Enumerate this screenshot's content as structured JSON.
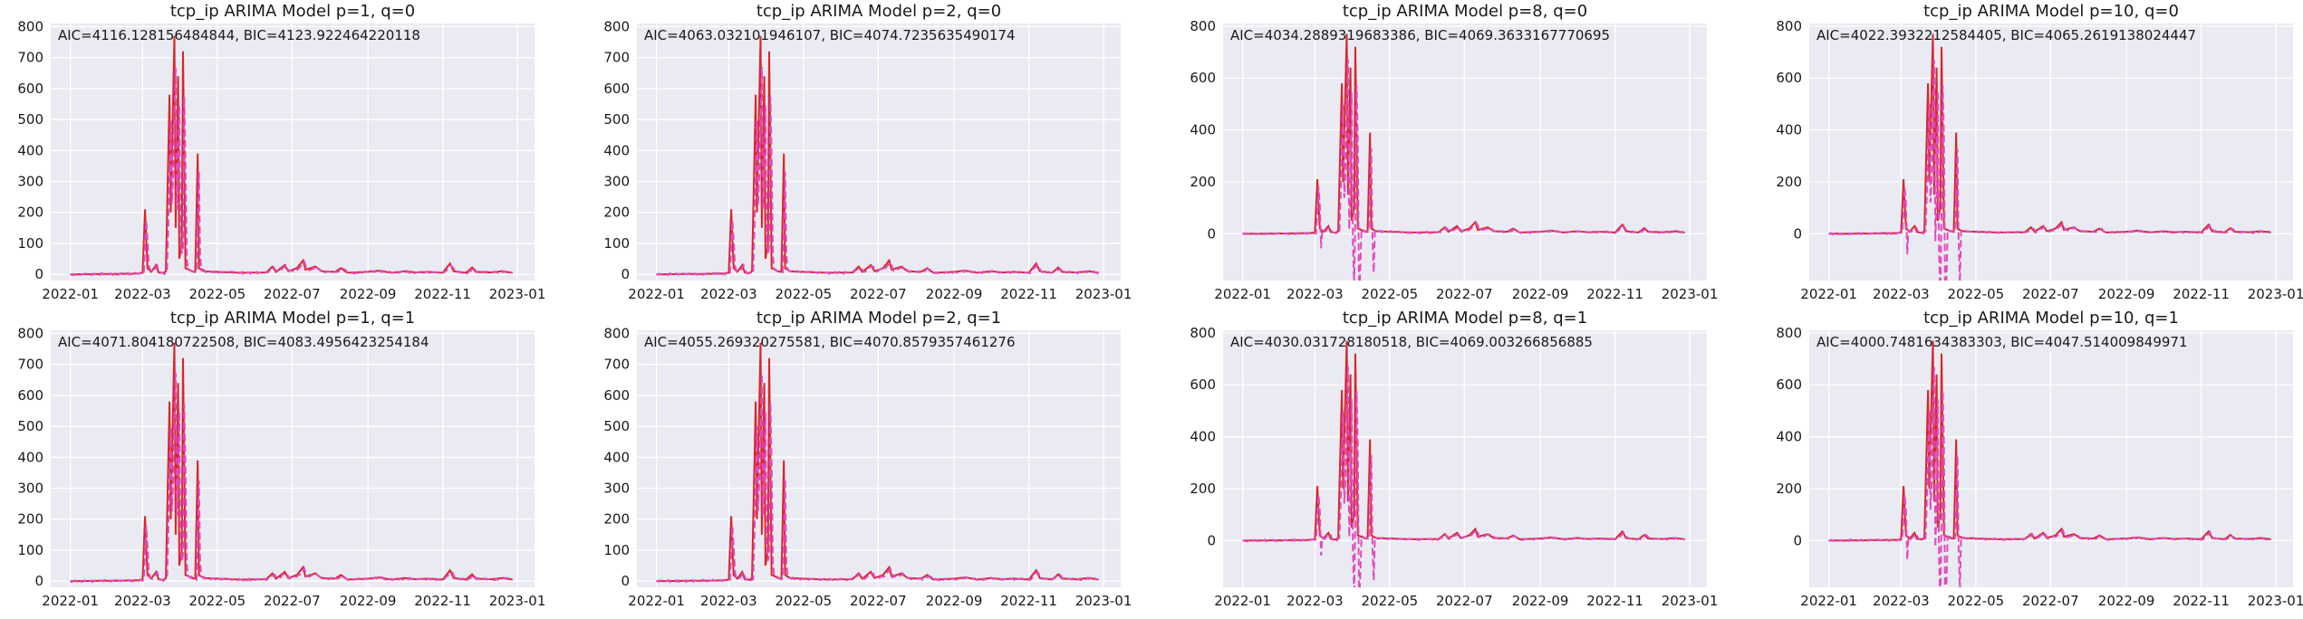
{
  "chart_data": [
    {
      "type": "line",
      "title": "tcp_ip ARIMA Model p=1, q=0",
      "annotation": "AIC=4116.128156484844, BIC=4123.922464220118",
      "model": {
        "p": 1,
        "q": 0
      },
      "ylim": [
        -20,
        810
      ],
      "yticks": [
        0,
        100,
        200,
        300,
        400,
        500,
        600,
        700,
        800
      ],
      "xticks": [
        "2022-01",
        "2022-03",
        "2022-05",
        "2022-07",
        "2022-09",
        "2022-11",
        "2023-01"
      ],
      "xlim": [
        "2021-12-16",
        "2023-01-15"
      ]
    },
    {
      "type": "line",
      "title": "tcp_ip ARIMA Model p=2, q=0",
      "annotation": "AIC=4063.032101946107, BIC=4074.7235635490174",
      "model": {
        "p": 2,
        "q": 0
      },
      "ylim": [
        -20,
        810
      ],
      "yticks": [
        0,
        100,
        200,
        300,
        400,
        500,
        600,
        700,
        800
      ],
      "xticks": [
        "2022-01",
        "2022-03",
        "2022-05",
        "2022-07",
        "2022-09",
        "2022-11",
        "2023-01"
      ],
      "xlim": [
        "2021-12-16",
        "2023-01-15"
      ]
    },
    {
      "type": "line",
      "title": "tcp_ip ARIMA Model p=8, q=0",
      "annotation": "AIC=4034.2889319683386, BIC=4069.3633167770695",
      "model": {
        "p": 8,
        "q": 0
      },
      "ylim": [
        -180,
        810
      ],
      "yticks": [
        0,
        200,
        400,
        600,
        800
      ],
      "xticks": [
        "2022-01",
        "2022-03",
        "2022-05",
        "2022-07",
        "2022-09",
        "2022-11",
        "2023-01"
      ],
      "xlim": [
        "2021-12-16",
        "2023-01-15"
      ]
    },
    {
      "type": "line",
      "title": "tcp_ip ARIMA Model p=10, q=0",
      "annotation": "AIC=4022.3932212584405, BIC=4065.2619138024447",
      "model": {
        "p": 10,
        "q": 0
      },
      "ylim": [
        -180,
        810
      ],
      "yticks": [
        0,
        200,
        400,
        600,
        800
      ],
      "xticks": [
        "2022-01",
        "2022-03",
        "2022-05",
        "2022-07",
        "2022-09",
        "2022-11",
        "2023-01"
      ],
      "xlim": [
        "2021-12-16",
        "2023-01-15"
      ]
    },
    {
      "type": "line",
      "title": "tcp_ip ARIMA Model p=1, q=1",
      "annotation": "AIC=4071.804180722508, BIC=4083.4956423254184",
      "model": {
        "p": 1,
        "q": 1
      },
      "ylim": [
        -20,
        810
      ],
      "yticks": [
        0,
        100,
        200,
        300,
        400,
        500,
        600,
        700,
        800
      ],
      "xticks": [
        "2022-01",
        "2022-03",
        "2022-05",
        "2022-07",
        "2022-09",
        "2022-11",
        "2023-01"
      ],
      "xlim": [
        "2021-12-16",
        "2023-01-15"
      ]
    },
    {
      "type": "line",
      "title": "tcp_ip ARIMA Model p=2, q=1",
      "annotation": "AIC=4055.269320275581, BIC=4070.8579357461276",
      "model": {
        "p": 2,
        "q": 1
      },
      "ylim": [
        -20,
        810
      ],
      "yticks": [
        0,
        100,
        200,
        300,
        400,
        500,
        600,
        700,
        800
      ],
      "xticks": [
        "2022-01",
        "2022-03",
        "2022-05",
        "2022-07",
        "2022-09",
        "2022-11",
        "2023-01"
      ],
      "xlim": [
        "2021-12-16",
        "2023-01-15"
      ]
    },
    {
      "type": "line",
      "title": "tcp_ip ARIMA Model p=8, q=1",
      "annotation": "AIC=4030.031728180518, BIC=4069.003266856885",
      "model": {
        "p": 8,
        "q": 1
      },
      "ylim": [
        -180,
        810
      ],
      "yticks": [
        0,
        200,
        400,
        600,
        800
      ],
      "xticks": [
        "2022-01",
        "2022-03",
        "2022-05",
        "2022-07",
        "2022-09",
        "2022-11",
        "2023-01"
      ],
      "xlim": [
        "2021-12-16",
        "2023-01-15"
      ]
    },
    {
      "type": "line",
      "title": "tcp_ip ARIMA Model p=10, q=1",
      "annotation": "AIC=4000.7481634383303, BIC=4047.514009849971",
      "model": {
        "p": 10,
        "q": 1
      },
      "ylim": [
        -180,
        810
      ],
      "yticks": [
        0,
        200,
        400,
        600,
        800
      ],
      "xticks": [
        "2022-01",
        "2022-03",
        "2022-05",
        "2022-07",
        "2022-09",
        "2022-11",
        "2023-01"
      ],
      "xlim": [
        "2021-12-16",
        "2023-01-15"
      ]
    }
  ],
  "series_style": {
    "actual": {
      "color": "#d62728",
      "dash": "solid"
    },
    "predicted": {
      "color": "#e04bc0",
      "dash": "dashed"
    }
  },
  "actual_series": {
    "start": "2022-01-01",
    "keypoints": [
      [
        "2022-01-01",
        0
      ],
      [
        "2022-02-20",
        2
      ],
      [
        "2022-02-26",
        3
      ],
      [
        "2022-03-01",
        5
      ],
      [
        "2022-03-03",
        210
      ],
      [
        "2022-03-05",
        20
      ],
      [
        "2022-03-08",
        8
      ],
      [
        "2022-03-12",
        30
      ],
      [
        "2022-03-14",
        6
      ],
      [
        "2022-03-18",
        4
      ],
      [
        "2022-03-20",
        10
      ],
      [
        "2022-03-23",
        580
      ],
      [
        "2022-03-24",
        200
      ],
      [
        "2022-03-27",
        770
      ],
      [
        "2022-03-28",
        150
      ],
      [
        "2022-03-30",
        640
      ],
      [
        "2022-03-31",
        50
      ],
      [
        "2022-04-02",
        100
      ],
      [
        "2022-04-03",
        720
      ],
      [
        "2022-04-05",
        20
      ],
      [
        "2022-04-08",
        15
      ],
      [
        "2022-04-10",
        10
      ],
      [
        "2022-04-13",
        8
      ],
      [
        "2022-04-15",
        390
      ],
      [
        "2022-04-16",
        20
      ],
      [
        "2022-04-20",
        10
      ],
      [
        "2022-05-01",
        8
      ],
      [
        "2022-05-20",
        5
      ],
      [
        "2022-06-10",
        6
      ],
      [
        "2022-06-15",
        25
      ],
      [
        "2022-06-18",
        8
      ],
      [
        "2022-06-25",
        30
      ],
      [
        "2022-06-28",
        10
      ],
      [
        "2022-07-05",
        20
      ],
      [
        "2022-07-10",
        45
      ],
      [
        "2022-07-12",
        15
      ],
      [
        "2022-07-20",
        25
      ],
      [
        "2022-07-25",
        10
      ],
      [
        "2022-08-05",
        8
      ],
      [
        "2022-08-10",
        20
      ],
      [
        "2022-08-15",
        5
      ],
      [
        "2022-09-01",
        8
      ],
      [
        "2022-09-10",
        12
      ],
      [
        "2022-09-20",
        5
      ],
      [
        "2022-10-01",
        10
      ],
      [
        "2022-10-10",
        6
      ],
      [
        "2022-10-20",
        8
      ],
      [
        "2022-11-01",
        5
      ],
      [
        "2022-11-07",
        35
      ],
      [
        "2022-11-10",
        10
      ],
      [
        "2022-11-20",
        5
      ],
      [
        "2022-11-25",
        22
      ],
      [
        "2022-11-28",
        8
      ],
      [
        "2022-12-10",
        6
      ],
      [
        "2022-12-20",
        10
      ],
      [
        "2022-12-28",
        5
      ]
    ]
  }
}
